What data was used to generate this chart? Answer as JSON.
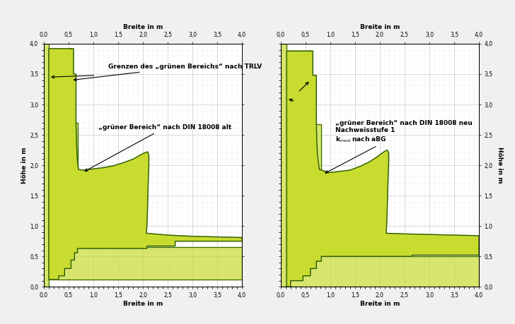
{
  "fig_width": 7.28,
  "fig_height": 4.59,
  "dpi": 100,
  "outer_bg": "#f0f0ee",
  "plot_bg": "white",
  "grid_major_color": "#bbbbbb",
  "grid_minor_color": "#dddddd",
  "green_fill": "#b8cc20",
  "green_fill2": "#c8dc30",
  "green_line_outer": "#3a6a0a",
  "green_line_inner": "#2a5a08",
  "xlim": [
    0.0,
    4.0
  ],
  "ylim": [
    0.0,
    4.0
  ],
  "xticks": [
    0.0,
    0.5,
    1.0,
    1.5,
    2.0,
    2.5,
    3.0,
    3.5,
    4.0
  ],
  "yticks": [
    0.0,
    0.5,
    1.0,
    1.5,
    2.0,
    2.5,
    3.0,
    3.5,
    4.0
  ],
  "xlabel": "Breite in m",
  "ylabel": "Höhe in m",
  "ann_trlv": "Grenzen des „grünen Bereichs“ nach TRLV",
  "ann_left": "„grüner Bereich“ nach DIN 18008 alt",
  "ann_right": "„grüner Bereich“ nach DIN 18008 neu\nNachweisstufe 1\nk$_{mod}$ nach aBG"
}
